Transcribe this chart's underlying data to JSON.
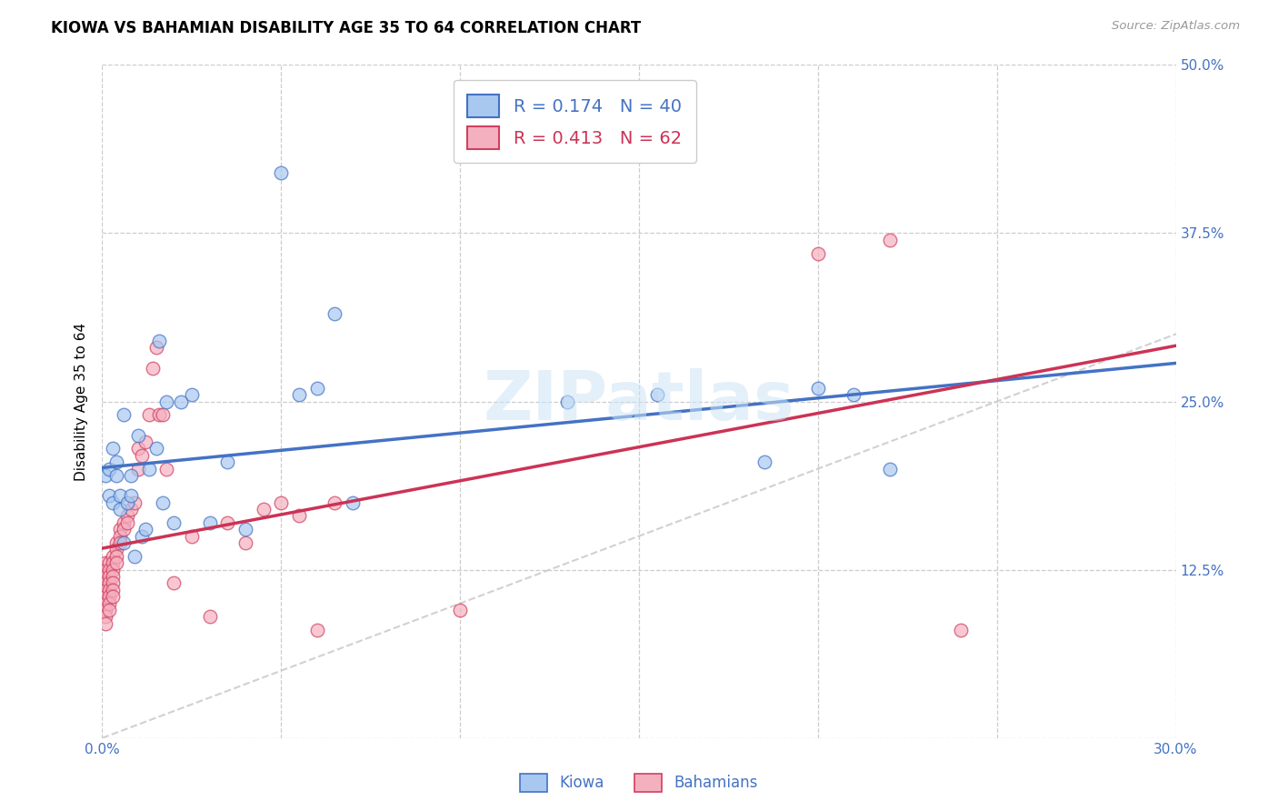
{
  "title": "KIOWA VS BAHAMIAN DISABILITY AGE 35 TO 64 CORRELATION CHART",
  "source": "Source: ZipAtlas.com",
  "ylabel": "Disability Age 35 to 64",
  "xlim": [
    0.0,
    0.3
  ],
  "ylim": [
    0.0,
    0.5
  ],
  "xticks": [
    0.0,
    0.05,
    0.1,
    0.15,
    0.2,
    0.25,
    0.3
  ],
  "xticklabels": [
    "0.0%",
    "",
    "",
    "",
    "",
    "",
    "30.0%"
  ],
  "yticks": [
    0.0,
    0.125,
    0.25,
    0.375,
    0.5
  ],
  "yticklabels": [
    "",
    "12.5%",
    "25.0%",
    "37.5%",
    "50.0%"
  ],
  "legend_r1": "R = 0.174",
  "legend_n1": "N = 40",
  "legend_r2": "R = 0.413",
  "legend_n2": "N = 62",
  "kiowa_dot_color": "#a8c8f0",
  "kiowa_edge_color": "#4472c4",
  "bahamian_dot_color": "#f5b0c0",
  "bahamian_edge_color": "#d04060",
  "kiowa_line_color": "#4472c4",
  "bahamian_line_color": "#cc3355",
  "ref_line_color": "#cccccc",
  "watermark": "ZIPatlas",
  "kiowa_x": [
    0.001,
    0.002,
    0.002,
    0.003,
    0.003,
    0.004,
    0.004,
    0.005,
    0.005,
    0.006,
    0.006,
    0.007,
    0.008,
    0.008,
    0.009,
    0.01,
    0.011,
    0.012,
    0.013,
    0.015,
    0.016,
    0.017,
    0.018,
    0.02,
    0.022,
    0.025,
    0.03,
    0.035,
    0.04,
    0.05,
    0.055,
    0.06,
    0.065,
    0.07,
    0.13,
    0.155,
    0.185,
    0.2,
    0.21,
    0.22
  ],
  "kiowa_y": [
    0.195,
    0.2,
    0.18,
    0.215,
    0.175,
    0.205,
    0.195,
    0.18,
    0.17,
    0.145,
    0.24,
    0.175,
    0.18,
    0.195,
    0.135,
    0.225,
    0.15,
    0.155,
    0.2,
    0.215,
    0.295,
    0.175,
    0.25,
    0.16,
    0.25,
    0.255,
    0.16,
    0.205,
    0.155,
    0.42,
    0.255,
    0.26,
    0.315,
    0.175,
    0.25,
    0.255,
    0.205,
    0.26,
    0.255,
    0.2
  ],
  "bahamian_x": [
    0.001,
    0.001,
    0.001,
    0.001,
    0.001,
    0.001,
    0.001,
    0.001,
    0.001,
    0.001,
    0.002,
    0.002,
    0.002,
    0.002,
    0.002,
    0.002,
    0.002,
    0.002,
    0.003,
    0.003,
    0.003,
    0.003,
    0.003,
    0.003,
    0.003,
    0.004,
    0.004,
    0.004,
    0.004,
    0.005,
    0.005,
    0.005,
    0.006,
    0.006,
    0.007,
    0.007,
    0.008,
    0.009,
    0.01,
    0.01,
    0.011,
    0.012,
    0.013,
    0.014,
    0.015,
    0.016,
    0.017,
    0.018,
    0.02,
    0.025,
    0.03,
    0.035,
    0.04,
    0.045,
    0.05,
    0.055,
    0.06,
    0.065,
    0.1,
    0.2,
    0.22,
    0.24
  ],
  "bahamian_y": [
    0.13,
    0.125,
    0.12,
    0.115,
    0.11,
    0.105,
    0.1,
    0.095,
    0.09,
    0.085,
    0.13,
    0.125,
    0.12,
    0.115,
    0.11,
    0.105,
    0.1,
    0.095,
    0.135,
    0.13,
    0.125,
    0.12,
    0.115,
    0.11,
    0.105,
    0.145,
    0.14,
    0.135,
    0.13,
    0.155,
    0.15,
    0.145,
    0.16,
    0.155,
    0.165,
    0.16,
    0.17,
    0.175,
    0.215,
    0.2,
    0.21,
    0.22,
    0.24,
    0.275,
    0.29,
    0.24,
    0.24,
    0.2,
    0.115,
    0.15,
    0.09,
    0.16,
    0.145,
    0.17,
    0.175,
    0.165,
    0.08,
    0.175,
    0.095,
    0.36,
    0.37,
    0.08
  ]
}
